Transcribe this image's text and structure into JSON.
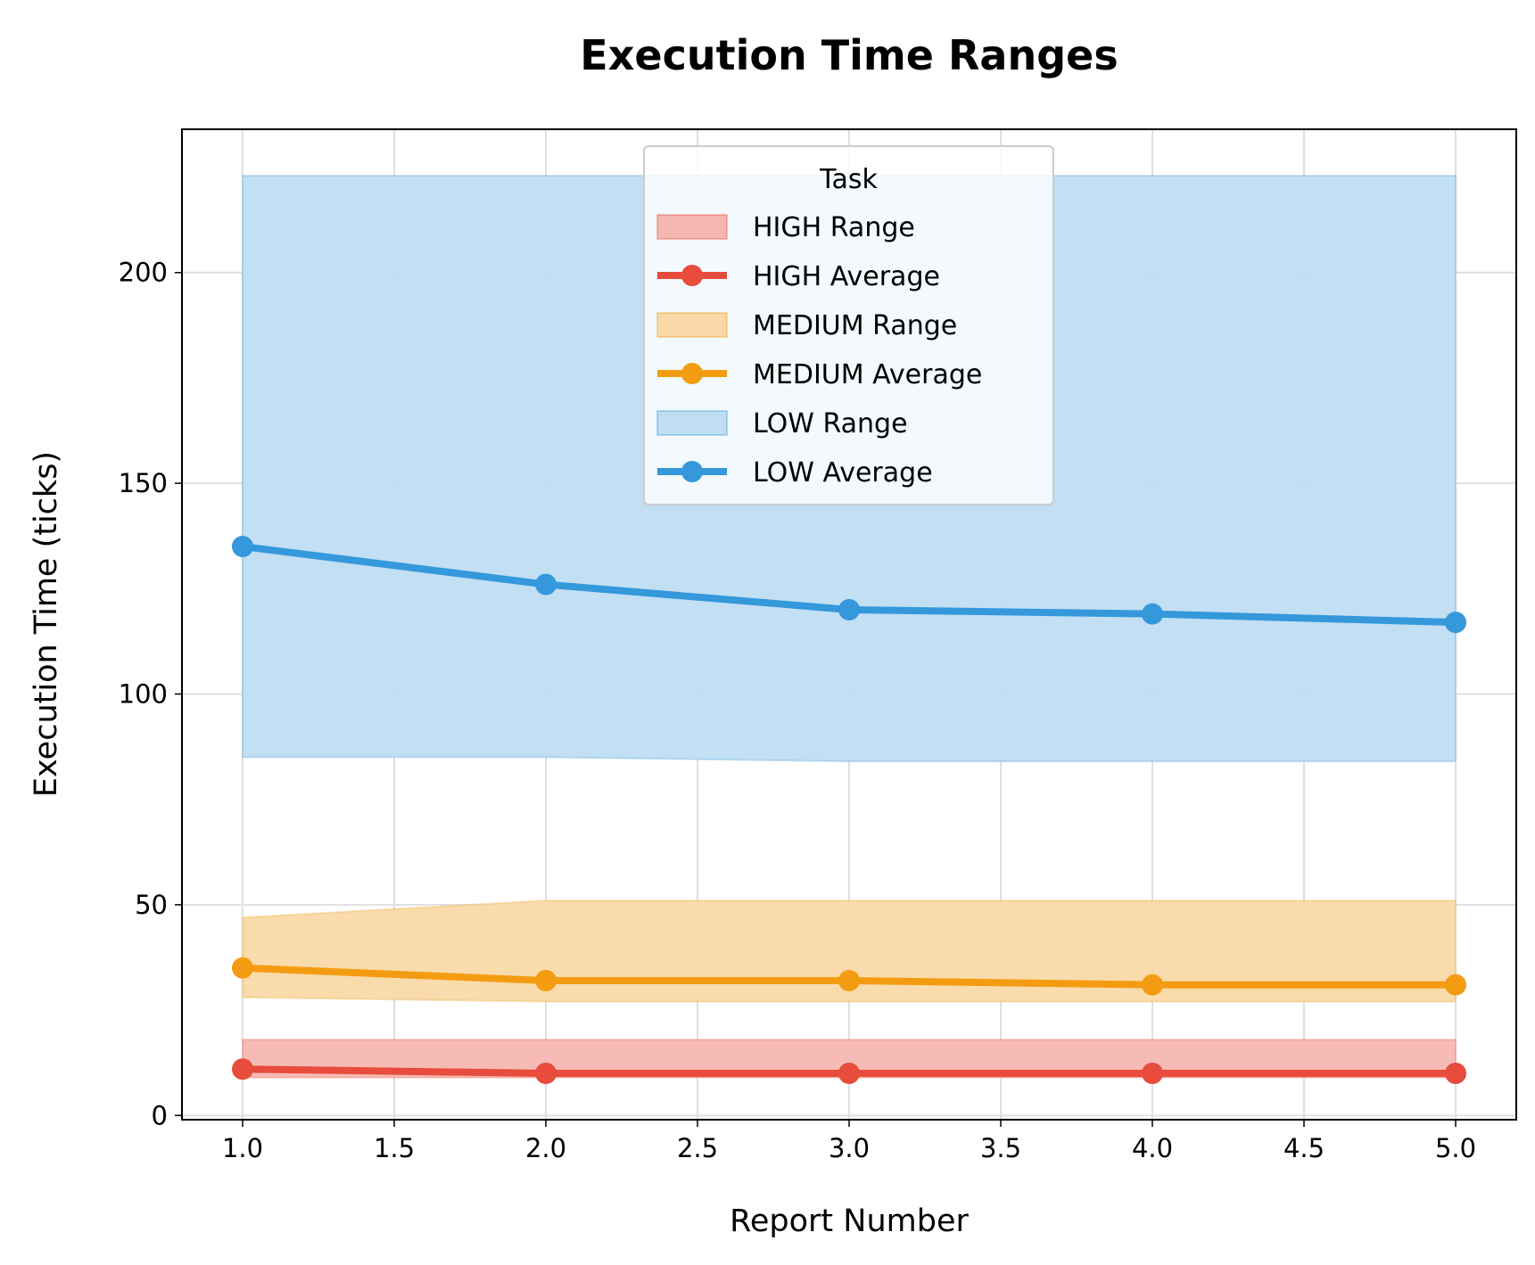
{
  "chart_data": {
    "type": "line",
    "title": "Execution Time Ranges",
    "xlabel": "Report Number",
    "ylabel": "Execution Time (ticks)",
    "xlim": [
      0.8,
      5.2
    ],
    "ylim": [
      -1,
      234
    ],
    "xticks": [
      "1.0",
      "1.5",
      "2.0",
      "2.5",
      "3.0",
      "3.5",
      "4.0",
      "4.5",
      "5.0"
    ],
    "yticks": [
      "0",
      "50",
      "100",
      "150",
      "200"
    ],
    "grid": true,
    "legend": {
      "title": "Task",
      "placement": "upper center",
      "entries": [
        "HIGH Range",
        "HIGH Average",
        "MEDIUM Range",
        "MEDIUM Average",
        "LOW Range",
        "LOW Average"
      ]
    },
    "x": [
      1,
      2,
      3,
      4,
      5
    ],
    "series": [
      {
        "name": "HIGH",
        "color": "#e74c3c",
        "range_color": "#f5b7b1",
        "average": [
          11,
          10,
          10,
          10,
          10
        ],
        "min": [
          9,
          9,
          9,
          9,
          9
        ],
        "max": [
          18,
          18,
          18,
          18,
          18
        ]
      },
      {
        "name": "MEDIUM",
        "color": "#f39c12",
        "range_color": "#f9d9a8",
        "average": [
          35,
          32,
          32,
          31,
          31
        ],
        "min": [
          28,
          27,
          27,
          27,
          27
        ],
        "max": [
          47,
          51,
          51,
          51,
          51
        ]
      },
      {
        "name": "LOW",
        "color": "#3498db",
        "range_color": "#bfddf3",
        "average": [
          135,
          126,
          120,
          119,
          117
        ],
        "min": [
          85,
          85,
          84,
          84,
          84
        ],
        "max": [
          223,
          223,
          223,
          223,
          223
        ]
      }
    ]
  }
}
